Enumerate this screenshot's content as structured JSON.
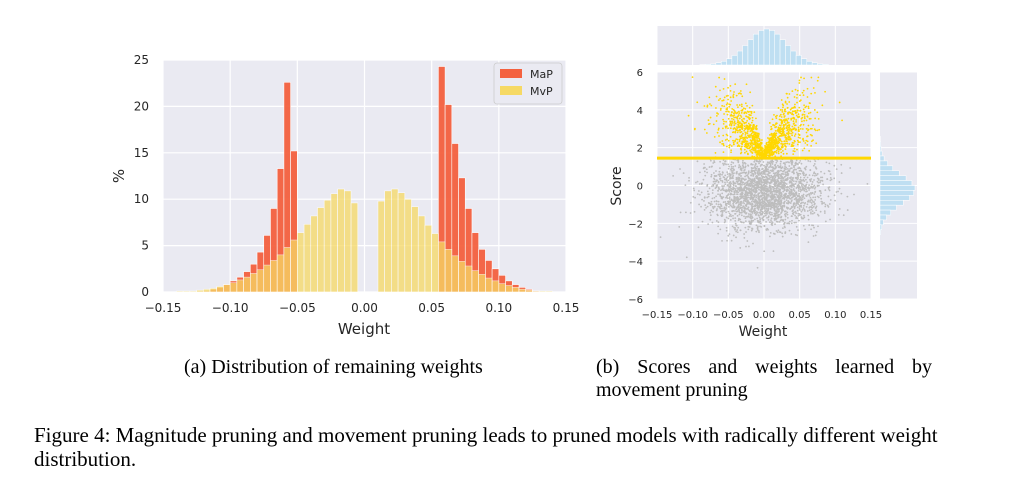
{
  "chart_data": [
    {
      "type": "bar",
      "panel": "a",
      "xlabel": "Weight",
      "ylabel": "%",
      "xlim": [
        -0.15,
        0.15
      ],
      "ylim": [
        0,
        25
      ],
      "xticks": [
        "−0.15",
        "−0.10",
        "−0.05",
        "0.00",
        "0.05",
        "0.10",
        "0.15"
      ],
      "yticks": [
        "0",
        "5",
        "10",
        "15",
        "20",
        "25"
      ],
      "grid": true,
      "legend_position": "top-right",
      "bin_width": 0.005,
      "series": [
        {
          "name": "MaP",
          "color": "#f4613f",
          "bins": [
            [
              -0.12,
              0.1
            ],
            [
              -0.115,
              0.3
            ],
            [
              -0.11,
              0.5
            ],
            [
              -0.105,
              0.8
            ],
            [
              -0.1,
              1.2
            ],
            [
              -0.095,
              1.6
            ],
            [
              -0.09,
              2.2
            ],
            [
              -0.085,
              3.0
            ],
            [
              -0.08,
              4.3
            ],
            [
              -0.075,
              6.1
            ],
            [
              -0.07,
              9.0
            ],
            [
              -0.065,
              13.3
            ],
            [
              -0.06,
              22.6
            ],
            [
              -0.055,
              15.2
            ],
            [
              0.055,
              24.3
            ],
            [
              0.06,
              20.2
            ],
            [
              0.065,
              16.0
            ],
            [
              0.07,
              12.3
            ],
            [
              0.075,
              9.0
            ],
            [
              0.08,
              6.4
            ],
            [
              0.085,
              4.6
            ],
            [
              0.09,
              3.4
            ],
            [
              0.095,
              2.5
            ],
            [
              0.1,
              1.8
            ],
            [
              0.105,
              1.2
            ],
            [
              0.11,
              0.8
            ],
            [
              0.115,
              0.5
            ],
            [
              0.12,
              0.3
            ],
            [
              0.125,
              0.1
            ]
          ]
        },
        {
          "name": "MvP",
          "color": "#f6d964",
          "bins": [
            [
              -0.14,
              0.1
            ],
            [
              -0.135,
              0.1
            ],
            [
              -0.13,
              0.1
            ],
            [
              -0.125,
              0.2
            ],
            [
              -0.12,
              0.3
            ],
            [
              -0.115,
              0.4
            ],
            [
              -0.11,
              0.6
            ],
            [
              -0.105,
              0.8
            ],
            [
              -0.1,
              1.0
            ],
            [
              -0.095,
              1.3
            ],
            [
              -0.09,
              1.6
            ],
            [
              -0.085,
              2.0
            ],
            [
              -0.08,
              2.4
            ],
            [
              -0.075,
              2.9
            ],
            [
              -0.07,
              3.4
            ],
            [
              -0.065,
              4.0
            ],
            [
              -0.06,
              4.8
            ],
            [
              -0.055,
              5.6
            ],
            [
              -0.05,
              6.4
            ],
            [
              -0.045,
              7.3
            ],
            [
              -0.04,
              8.2
            ],
            [
              -0.035,
              9.1
            ],
            [
              -0.03,
              9.9
            ],
            [
              -0.025,
              10.6
            ],
            [
              -0.02,
              11.1
            ],
            [
              -0.015,
              10.9
            ],
            [
              -0.01,
              9.6
            ],
            [
              0.01,
              9.8
            ],
            [
              0.015,
              10.9
            ],
            [
              0.02,
              11.1
            ],
            [
              0.025,
              10.7
            ],
            [
              0.03,
              10.0
            ],
            [
              0.035,
              9.2
            ],
            [
              0.04,
              8.2
            ],
            [
              0.045,
              7.2
            ],
            [
              0.05,
              6.3
            ],
            [
              0.055,
              5.4
            ],
            [
              0.06,
              4.6
            ],
            [
              0.065,
              3.9
            ],
            [
              0.07,
              3.3
            ],
            [
              0.075,
              2.8
            ],
            [
              0.08,
              2.3
            ],
            [
              0.085,
              1.9
            ],
            [
              0.09,
              1.5
            ],
            [
              0.095,
              1.2
            ],
            [
              0.1,
              0.9
            ],
            [
              0.105,
              0.7
            ],
            [
              0.11,
              0.5
            ],
            [
              0.115,
              0.3
            ],
            [
              0.12,
              0.2
            ],
            [
              0.125,
              0.1
            ],
            [
              0.13,
              0.1
            ],
            [
              0.135,
              0.1
            ]
          ]
        }
      ]
    },
    {
      "type": "scatter",
      "panel": "b",
      "xlabel": "Weight",
      "ylabel": "Score",
      "xlim": [
        -0.15,
        0.15
      ],
      "ylim": [
        -6,
        6
      ],
      "xticks": [
        "−0.15",
        "−0.10",
        "−0.05",
        "0.00",
        "0.05",
        "0.10",
        "0.15"
      ],
      "yticks": [
        "−6",
        "−4",
        "−2",
        "0",
        "2",
        "4",
        "6"
      ],
      "threshold": 1.45,
      "colors": {
        "kept": "#ffd700",
        "pruned": "#bdbdbd",
        "marginal": "#bfdff2"
      },
      "marginal_x": [
        0.1,
        0.2,
        0.3,
        0.6,
        1.0,
        1.7,
        2.6,
        3.8,
        5.3,
        6.9,
        8.4,
        9.4,
        9.8,
        9.4,
        8.4,
        6.9,
        5.3,
        3.8,
        2.6,
        1.7,
        1.0,
        0.6,
        0.3,
        0.2
      ],
      "marginal_y": [
        0.1,
        0.2,
        0.3,
        0.6,
        1.2,
        2.2,
        3.7,
        5.6,
        7.6,
        9.3,
        10.2,
        9.8,
        8.6,
        6.8,
        4.8,
        3.1,
        1.9,
        1.0,
        0.5,
        0.2
      ]
    }
  ],
  "captions": {
    "a": "(a) Distribution of remaining weights",
    "b_line1": [
      "(b)",
      "Scores",
      "and",
      "weights",
      "learned",
      "by"
    ],
    "b_line2": "movement pruning",
    "figure": "Figure 4: Magnitude pruning and movement pruning leads to pruned models with radically different weight distribution."
  }
}
